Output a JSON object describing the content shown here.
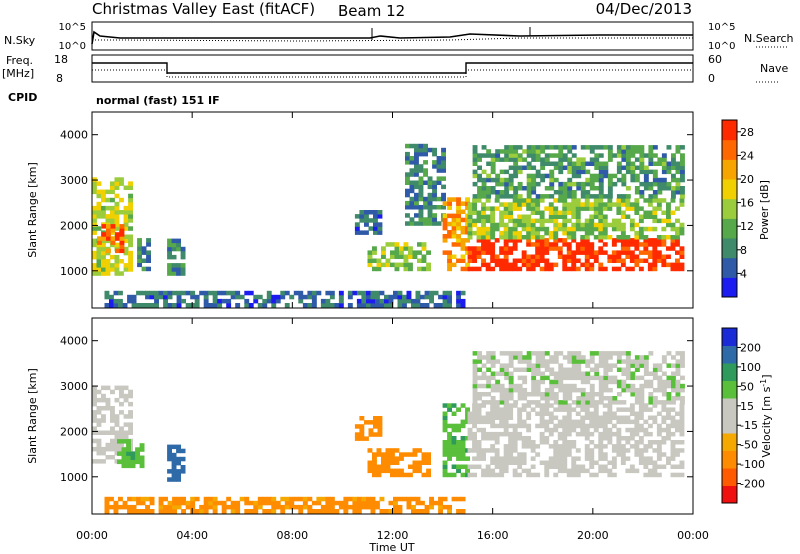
{
  "header": {
    "station": "Christmas Valley East (fitACF)",
    "beam": "Beam 12",
    "date": "04/Dec/2013"
  },
  "ancillary": {
    "nsky_label": "N.Sky",
    "nsearch_label": "N.Search",
    "noise_left_ticks": [
      "10^5",
      "10^0"
    ],
    "noise_right_ticks": [
      "10^5",
      "10^0"
    ],
    "freq_label_1": "Freq.",
    "freq_label_2": "[MHz]",
    "freq_ticks": [
      "18",
      "8"
    ],
    "nave_label": "Nave",
    "nave_ticks": [
      "60",
      "0"
    ],
    "cpid_label": "CPID",
    "cpid_value": "normal (fast) 151 IF"
  },
  "x_axis": {
    "label": "Time UT",
    "ticks": [
      "00:00",
      "04:00",
      "08:00",
      "12:00",
      "16:00",
      "20:00",
      "00:00"
    ]
  },
  "colors": {
    "power_scale": [
      "#1c1cf0",
      "#2f5aa8",
      "#3f8a6a",
      "#56a84a",
      "#9acc3c",
      "#f0d000",
      "#f5a400",
      "#ff6800",
      "#ff2a00"
    ],
    "velocity_scale": [
      "#f01010",
      "#ff5a00",
      "#ff8c00",
      "#f5a800",
      "#c8c8c0",
      "#c8c8c0",
      "#5abf3a",
      "#2e9a5c",
      "#2e6aa8",
      "#1a2ad6"
    ]
  },
  "chart_data": [
    {
      "type": "heatmap",
      "name": "power-panel",
      "xlabel": "Time UT",
      "ylabel": "Slant Range [km]",
      "xlim_hours": [
        0,
        24
      ],
      "ylim_km": [
        180,
        4500
      ],
      "y_ticks": [
        1000,
        2000,
        3000,
        4000
      ],
      "colorbar": {
        "label": "Power [dB]",
        "ticks": [
          4,
          8,
          12,
          16,
          20,
          24,
          28
        ],
        "range": [
          0,
          30
        ]
      },
      "regions": [
        {
          "t0": 0.0,
          "t1": 1.6,
          "r0": 900,
          "r1": 3000,
          "value": 16
        },
        {
          "t0": 0.2,
          "t1": 1.2,
          "r0": 1400,
          "r1": 2000,
          "value": 26
        },
        {
          "t0": 1.8,
          "t1": 2.2,
          "r0": 1000,
          "r1": 1700,
          "value": 8
        },
        {
          "t0": 3.0,
          "t1": 3.6,
          "r0": 900,
          "r1": 1700,
          "value": 10
        },
        {
          "t0": 0.5,
          "t1": 14.8,
          "r0": 200,
          "r1": 550,
          "value": 6
        },
        {
          "t0": 10.5,
          "t1": 11.5,
          "r0": 1800,
          "r1": 2300,
          "value": 6
        },
        {
          "t0": 11.0,
          "t1": 13.5,
          "r0": 1000,
          "r1": 1600,
          "value": 14
        },
        {
          "t0": 12.5,
          "t1": 14.0,
          "r0": 2000,
          "r1": 3800,
          "value": 8
        },
        {
          "t0": 14.0,
          "t1": 15.0,
          "r0": 1000,
          "r1": 2600,
          "value": 22
        },
        {
          "t0": 15.0,
          "t1": 23.6,
          "r0": 1000,
          "r1": 1700,
          "value": 29
        },
        {
          "t0": 15.0,
          "t1": 23.6,
          "r0": 1700,
          "r1": 2600,
          "value": 14
        },
        {
          "t0": 15.2,
          "t1": 23.6,
          "r0": 2600,
          "r1": 3700,
          "value": 10
        }
      ]
    },
    {
      "type": "heatmap",
      "name": "velocity-panel",
      "xlabel": "Time UT",
      "ylabel": "Slant Range [km]",
      "xlim_hours": [
        0,
        24
      ],
      "ylim_km": [
        180,
        4500
      ],
      "y_ticks": [
        1000,
        2000,
        3000,
        4000
      ],
      "colorbar": {
        "label": "Velocity [m s^-1]",
        "ticks": [
          -200,
          -100,
          -50,
          -15,
          15,
          50,
          100,
          200
        ],
        "tick_labels": [
          "-200",
          "-100",
          "-50",
          "-15",
          "15",
          "50",
          "100",
          "200"
        ]
      },
      "regions": [
        {
          "t0": 0.0,
          "t1": 1.6,
          "r0": 1300,
          "r1": 3000,
          "value": 0
        },
        {
          "t0": 1.0,
          "t1": 1.9,
          "r0": 1200,
          "r1": 1800,
          "value": 40
        },
        {
          "t0": 3.0,
          "t1": 3.6,
          "r0": 900,
          "r1": 1700,
          "value": 120
        },
        {
          "t0": 0.5,
          "t1": 14.8,
          "r0": 200,
          "r1": 550,
          "value": -60
        },
        {
          "t0": 10.5,
          "t1": 11.5,
          "r0": 1800,
          "r1": 2300,
          "value": -70
        },
        {
          "t0": 11.0,
          "t1": 13.5,
          "r0": 1000,
          "r1": 1600,
          "value": -80
        },
        {
          "t0": 14.0,
          "t1": 15.0,
          "r0": 1000,
          "r1": 2600,
          "value": 40
        },
        {
          "t0": 15.0,
          "t1": 23.6,
          "r0": 1000,
          "r1": 2600,
          "value": 0
        },
        {
          "t0": 15.2,
          "t1": 23.6,
          "r0": 2600,
          "r1": 3700,
          "value": 5
        }
      ]
    }
  ]
}
